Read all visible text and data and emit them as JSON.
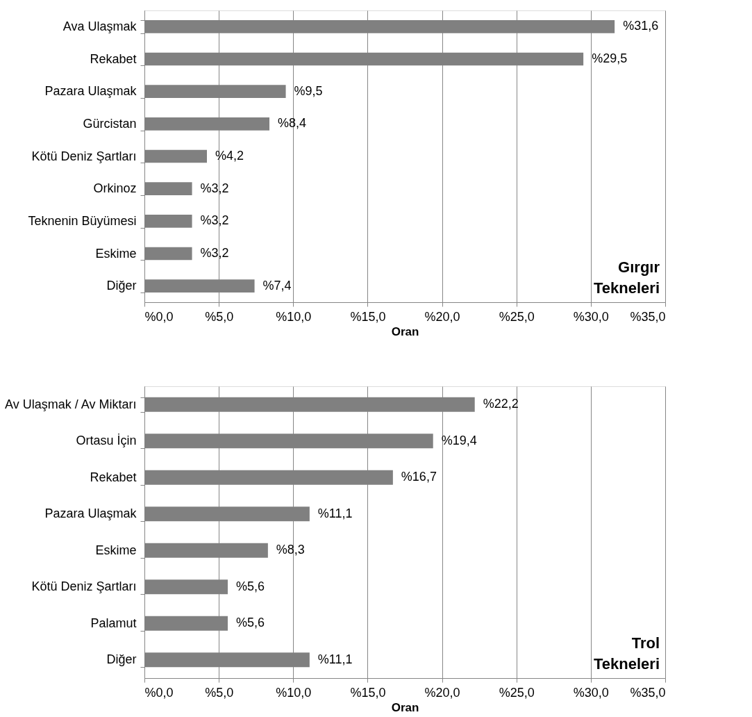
{
  "chart_data": [
    {
      "type": "bar",
      "orientation": "horizontal",
      "categories": [
        "Ava Ulaşmak",
        "Rekabet",
        "Pazara Ulaşmak",
        "Gürcistan",
        "Kötü Deniz Şartları",
        "Orkinoz",
        "Teknenin Büyümesi",
        "Eskime",
        "Diğer"
      ],
      "values": [
        31.6,
        29.5,
        9.5,
        8.4,
        4.2,
        3.2,
        3.2,
        3.2,
        7.4
      ],
      "value_labels": [
        "%31,6",
        "%29,5",
        "%9,5",
        "%8,4",
        "%4,2",
        "%3,2",
        "%3,2",
        "%3,2",
        "%7,4"
      ],
      "color": "#808080",
      "xlabel": "Oran",
      "xlim": [
        0,
        35
      ],
      "xticks": [
        {
          "value": 0,
          "label": "%0,0"
        },
        {
          "value": 5,
          "label": "%5,0"
        },
        {
          "value": 10,
          "label": "%10,0"
        },
        {
          "value": 15,
          "label": "%15,0"
        },
        {
          "value": 20,
          "label": "%20,0"
        },
        {
          "value": 25,
          "label": "%25,0"
        },
        {
          "value": 30,
          "label": "%30,0"
        },
        {
          "value": 35,
          "label": "%35,0"
        }
      ],
      "grid": "x",
      "annotations": [
        "Gırgır\nTekneleri"
      ]
    },
    {
      "type": "bar",
      "orientation": "horizontal",
      "categories": [
        "Av Ulaşmak / Av Miktarı",
        "Ortasu İçin",
        "Rekabet",
        "Pazara Ulaşmak",
        "Eskime",
        "Kötü Deniz Şartları",
        "Palamut",
        "Diğer"
      ],
      "values": [
        22.2,
        19.4,
        16.7,
        11.1,
        8.3,
        5.6,
        5.6,
        11.1
      ],
      "value_labels": [
        "%22,2",
        "%19,4",
        "%16,7",
        "%11,1",
        "%8,3",
        "%5,6",
        "%5,6",
        "%11,1"
      ],
      "color": "#808080",
      "xlabel": "Oran",
      "xlim": [
        0,
        35
      ],
      "xticks": [
        {
          "value": 0,
          "label": "%0,0"
        },
        {
          "value": 5,
          "label": "%5,0"
        },
        {
          "value": 10,
          "label": "%10,0"
        },
        {
          "value": 15,
          "label": "%15,0"
        },
        {
          "value": 20,
          "label": "%20,0"
        },
        {
          "value": 25,
          "label": "%25,0"
        },
        {
          "value": 30,
          "label": "%30,0"
        },
        {
          "value": 35,
          "label": "%35,0"
        }
      ],
      "grid": "x",
      "annotations": [
        "Trol\nTekneleri"
      ]
    }
  ]
}
